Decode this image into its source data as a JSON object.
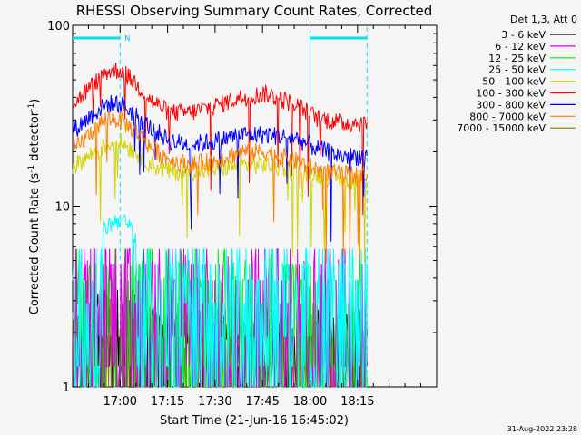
{
  "chart_data": {
    "type": "line",
    "title": "RHESSI Observing Summary Count Rates, Corrected",
    "xlabel": "Start Time (21-Jun-16 16:45:02)",
    "ylabel_main": "Corrected Count Rate (s",
    "ylabel_sup1": "-1",
    "ylabel_mid": " detector",
    "ylabel_sup2": "-1",
    "ylabel_end": ")",
    "y_scale": "log",
    "ylim": [
      1,
      100
    ],
    "xlim_minutes": [
      -15,
      100
    ],
    "y_ticks": [
      {
        "value": 1,
        "label": "1"
      },
      {
        "value": 10,
        "label": "10"
      },
      {
        "value": 100,
        "label": "100"
      }
    ],
    "x_ticks": [
      {
        "minute": 0,
        "label": "17:00"
      },
      {
        "minute": 15,
        "label": "17:15"
      },
      {
        "minute": 30,
        "label": "17:30"
      },
      {
        "minute": 45,
        "label": "17:45"
      },
      {
        "minute": 60,
        "label": "18:00"
      },
      {
        "minute": 75,
        "label": "18:15"
      }
    ],
    "legend_title": "Det 1,3, Att 0",
    "legend_position": "top-right",
    "timestamp": "31-Aug-2022 23:28",
    "night_marker_label": "N",
    "night_bars": [
      {
        "start": -15,
        "end": 0
      },
      {
        "start": 60,
        "end": 78
      }
    ],
    "series": [
      {
        "name": "3 - 6 keV",
        "color": "#000000",
        "x": [
          -14,
          -8,
          -4,
          0,
          5,
          10,
          16,
          22,
          30,
          38,
          46,
          55,
          62,
          70,
          78
        ],
        "y": [
          1.3,
          1.5,
          1.8,
          1.9,
          1.6,
          1.4,
          1.3,
          1.3,
          1.3,
          1.3,
          1.3,
          1.3,
          1.3,
          1.3,
          1.3
        ]
      },
      {
        "name": "6 - 12 keV",
        "color": "#dd00dd",
        "x": [
          -14,
          -8,
          -4,
          0,
          5,
          10,
          16,
          22,
          30,
          38,
          46,
          55,
          62,
          70,
          78
        ],
        "y": [
          3.9,
          4.1,
          4.3,
          4.4,
          4.2,
          4.0,
          4.0,
          4.0,
          4.0,
          4.0,
          4.0,
          4.0,
          4.0,
          4.0,
          4.0
        ]
      },
      {
        "name": "12 - 25 keV",
        "color": "#00ee00",
        "x": [
          -14,
          -8,
          -4,
          0,
          5,
          10,
          16,
          22,
          30,
          38,
          46,
          55,
          62,
          70,
          78
        ],
        "y": [
          2.9,
          3.2,
          3.5,
          3.6,
          3.3,
          3.0,
          2.9,
          2.9,
          2.9,
          2.9,
          2.9,
          2.9,
          2.9,
          2.9,
          2.9
        ]
      },
      {
        "name": "25 - 50 keV",
        "color": "#00ffff",
        "x": [
          -14,
          -8,
          -4,
          0,
          5,
          10,
          16,
          22,
          30,
          38,
          46,
          55,
          62,
          70,
          78
        ],
        "y": [
          4.8,
          6.0,
          7.8,
          8.6,
          7.0,
          5.6,
          4.9,
          4.8,
          4.8,
          4.8,
          4.8,
          4.8,
          4.8,
          4.8,
          4.8
        ]
      },
      {
        "name": "50 - 100 keV",
        "color": "#d4d400",
        "x": [
          -14,
          -8,
          -4,
          0,
          5,
          10,
          16,
          22,
          30,
          38,
          46,
          55,
          62,
          70,
          78
        ],
        "y": [
          17,
          20,
          22,
          23,
          20,
          17,
          15.5,
          15.5,
          16,
          17,
          17,
          16,
          15,
          14,
          14
        ]
      },
      {
        "name": "100 - 300 keV",
        "color": "#ff0000",
        "x": [
          -14,
          -8,
          -4,
          0,
          5,
          10,
          16,
          22,
          30,
          38,
          46,
          55,
          62,
          70,
          78
        ],
        "y": [
          38,
          48,
          56,
          57,
          48,
          38,
          33,
          33,
          36,
          40,
          42,
          37,
          31,
          29,
          29
        ]
      },
      {
        "name": "300 - 800 keV",
        "color": "#0000ff",
        "x": [
          -14,
          -8,
          -4,
          0,
          5,
          10,
          16,
          22,
          30,
          38,
          46,
          55,
          62,
          70,
          78
        ],
        "y": [
          27,
          33,
          37,
          37,
          32,
          27,
          23,
          22,
          23,
          25,
          25,
          24,
          21,
          19,
          19
        ]
      },
      {
        "name": "800 - 7000 keV",
        "color": "#ff8000",
        "x": [
          -14,
          -8,
          -4,
          0,
          5,
          10,
          16,
          22,
          30,
          38,
          46,
          55,
          62,
          70,
          78
        ],
        "y": [
          21,
          27,
          31,
          30,
          26,
          21,
          18,
          17,
          18,
          20,
          20,
          18,
          16,
          15,
          15
        ]
      },
      {
        "name": "7000 - 15000 keV",
        "color": "#808000",
        "x": [
          -14,
          -8,
          -4,
          0,
          5,
          10,
          16,
          22,
          30,
          38,
          46,
          55,
          62,
          70,
          78
        ],
        "y": [
          1.3,
          1.5,
          1.7,
          1.7,
          1.5,
          1.4,
          1.3,
          1.3,
          1.3,
          1.3,
          1.3,
          1.3,
          1.3,
          1.3,
          1.3
        ]
      }
    ],
    "grid": false
  }
}
